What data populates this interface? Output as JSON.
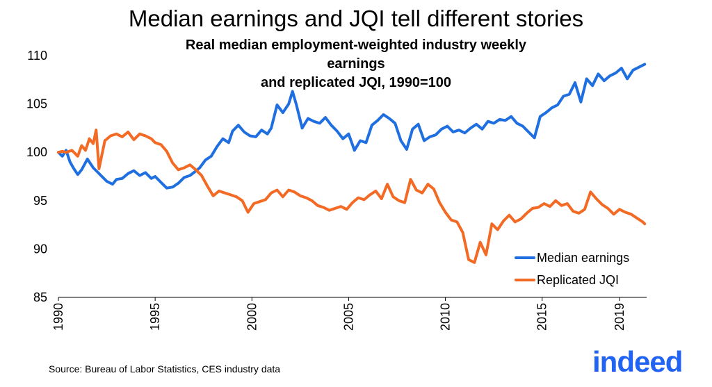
{
  "chart_data": {
    "type": "line",
    "title": "Median earnings and JQI tell different stories",
    "subtitle_lines": [
      "Real median employment-weighted industry weekly earnings",
      "and replicated JQI, 1990=100"
    ],
    "xlabel": "",
    "ylabel": "",
    "xlim": [
      1990,
      2020.4
    ],
    "ylim": [
      85,
      110
    ],
    "x_ticks": [
      "1990",
      "1995",
      "2000",
      "2005",
      "2010",
      "2015",
      "2019"
    ],
    "y_ticks": [
      "85",
      "90",
      "95",
      "100",
      "105",
      "110"
    ],
    "grid": false,
    "legend_position": "bottom-right",
    "series": [
      {
        "name": "Median earnings",
        "color": "#1f6fe0",
        "x": [
          1990.0,
          1990.2,
          1990.4,
          1990.6,
          1990.8,
          1991.0,
          1991.2,
          1991.5,
          1991.8,
          1992.0,
          1992.2,
          1992.5,
          1992.8,
          1993.0,
          1993.3,
          1993.6,
          1993.9,
          1994.2,
          1994.5,
          1994.8,
          1995.0,
          1995.3,
          1995.6,
          1995.9,
          1996.2,
          1996.5,
          1996.8,
          1997.0,
          1997.3,
          1997.6,
          1997.9,
          1998.2,
          1998.5,
          1998.8,
          1999.0,
          1999.3,
          1999.6,
          1999.9,
          2000.2,
          2000.5,
          2000.8,
          2001.0,
          2001.3,
          2001.6,
          2001.9,
          2002.1,
          2002.3,
          2002.6,
          2002.9,
          2003.2,
          2003.5,
          2003.8,
          2004.1,
          2004.4,
          2004.7,
          2005.0,
          2005.3,
          2005.6,
          2005.9,
          2006.2,
          2006.5,
          2006.8,
          2007.1,
          2007.4,
          2007.7,
          2008.0,
          2008.3,
          2008.6,
          2008.9,
          2009.2,
          2009.5,
          2009.8,
          2010.1,
          2010.4,
          2010.7,
          2011.0,
          2011.3,
          2011.6,
          2011.9,
          2012.2,
          2012.5,
          2012.8,
          2013.1,
          2013.4,
          2013.7,
          2014.0,
          2014.3,
          2014.6,
          2014.9,
          2015.2,
          2015.5,
          2015.8,
          2016.1,
          2016.4,
          2016.7,
          2017.0,
          2017.3,
          2017.6,
          2017.9,
          2018.2,
          2018.5,
          2018.8,
          2019.1,
          2019.4,
          2019.7,
          2020.0,
          2020.3
        ],
        "values": [
          100.0,
          99.6,
          100.2,
          99.0,
          98.3,
          97.7,
          98.2,
          99.3,
          98.4,
          98.0,
          97.6,
          97.0,
          96.7,
          97.2,
          97.3,
          97.8,
          98.1,
          97.6,
          97.9,
          97.3,
          97.5,
          96.9,
          96.3,
          96.4,
          96.8,
          97.4,
          97.6,
          97.9,
          98.4,
          99.2,
          99.6,
          100.6,
          101.4,
          101.0,
          102.2,
          102.8,
          102.1,
          101.7,
          101.6,
          102.3,
          101.9,
          102.5,
          104.9,
          104.1,
          105.0,
          106.3,
          104.9,
          102.5,
          103.5,
          103.2,
          103.0,
          103.6,
          102.8,
          102.2,
          101.4,
          101.9,
          100.2,
          101.2,
          101.0,
          102.8,
          103.3,
          103.9,
          103.5,
          103.0,
          101.2,
          100.3,
          102.4,
          102.9,
          101.2,
          101.6,
          101.8,
          102.4,
          102.7,
          102.1,
          102.3,
          102.0,
          102.5,
          102.9,
          102.4,
          103.2,
          103.0,
          103.4,
          103.3,
          103.7,
          103.0,
          102.7,
          102.1,
          101.5,
          103.7,
          104.1,
          104.6,
          104.9,
          105.8,
          106.0,
          107.2,
          105.2,
          107.6,
          106.9,
          108.1,
          107.4,
          107.9,
          108.2,
          108.7,
          107.6,
          108.5,
          108.8,
          109.1
        ]
      },
      {
        "name": "Replicated JQI",
        "color": "#f26a24",
        "x": [
          1990.0,
          1990.2,
          1990.4,
          1990.7,
          1991.0,
          1991.2,
          1991.4,
          1991.6,
          1991.8,
          1991.95,
          1992.1,
          1992.4,
          1992.7,
          1993.0,
          1993.3,
          1993.6,
          1993.9,
          1994.2,
          1994.5,
          1994.8,
          1995.0,
          1995.3,
          1995.6,
          1995.9,
          1996.2,
          1996.5,
          1996.8,
          1997.1,
          1997.4,
          1997.7,
          1998.0,
          1998.3,
          1998.6,
          1998.9,
          1999.2,
          1999.5,
          1999.8,
          2000.1,
          2000.4,
          2000.7,
          2001.0,
          2001.3,
          2001.6,
          2001.9,
          2002.2,
          2002.5,
          2002.8,
          2003.1,
          2003.4,
          2003.7,
          2004.0,
          2004.3,
          2004.6,
          2004.9,
          2005.2,
          2005.5,
          2005.8,
          2006.1,
          2006.4,
          2006.7,
          2007.0,
          2007.3,
          2007.6,
          2007.9,
          2008.2,
          2008.5,
          2008.8,
          2009.1,
          2009.4,
          2009.7,
          2010.0,
          2010.3,
          2010.6,
          2010.9,
          2011.2,
          2011.5,
          2011.8,
          2012.1,
          2012.4,
          2012.7,
          2013.0,
          2013.3,
          2013.6,
          2013.9,
          2014.2,
          2014.5,
          2014.8,
          2015.1,
          2015.4,
          2015.7,
          2016.0,
          2016.3,
          2016.6,
          2016.9,
          2017.2,
          2017.5,
          2017.8,
          2018.1,
          2018.4,
          2018.7,
          2019.0,
          2019.3,
          2019.6,
          2019.9,
          2020.2,
          2020.3
        ],
        "values": [
          100.0,
          100.1,
          100.0,
          100.2,
          99.6,
          100.7,
          100.2,
          101.4,
          100.9,
          102.3,
          98.3,
          101.2,
          101.7,
          101.9,
          101.6,
          102.1,
          101.3,
          101.9,
          101.7,
          101.4,
          101.0,
          100.8,
          100.1,
          98.9,
          98.2,
          98.4,
          98.7,
          98.2,
          97.6,
          96.5,
          95.5,
          96.0,
          95.8,
          95.6,
          95.4,
          95.0,
          93.8,
          94.7,
          94.9,
          95.1,
          95.8,
          96.1,
          95.4,
          96.1,
          95.9,
          95.5,
          95.3,
          95.0,
          94.5,
          94.3,
          94.0,
          94.2,
          94.4,
          94.1,
          94.8,
          95.3,
          95.1,
          95.6,
          96.0,
          95.2,
          96.7,
          95.4,
          95.0,
          94.8,
          97.2,
          96.1,
          95.8,
          96.7,
          96.2,
          94.8,
          93.8,
          93.0,
          92.8,
          91.7,
          88.9,
          88.6,
          90.7,
          89.4,
          92.6,
          92.0,
          92.9,
          93.5,
          92.8,
          93.1,
          93.7,
          94.2,
          94.3,
          94.7,
          94.4,
          95.0,
          94.5,
          94.7,
          93.9,
          93.7,
          94.1,
          95.9,
          95.2,
          94.6,
          94.2,
          93.6,
          94.1,
          93.8,
          93.6,
          93.2,
          92.8,
          92.6
        ]
      }
    ]
  },
  "footer": {
    "source": "Source: Bureau of Labor Statistics, CES industry data",
    "logo_text": "indeed"
  }
}
